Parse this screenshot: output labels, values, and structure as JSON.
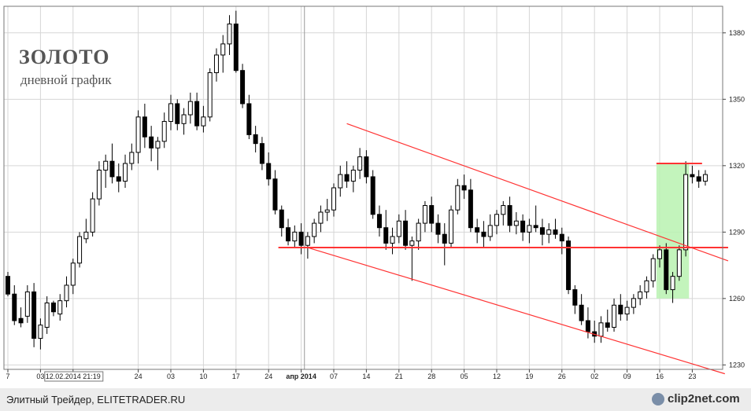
{
  "header": {
    "title": "ЗОЛОТО",
    "subtitle": "дневной график"
  },
  "footer": {
    "text": "Элитный Трейдер, ELITETRADER.RU",
    "logo_text": "clip2net.com"
  },
  "colors": {
    "candle_stroke": "#000000",
    "up_fill": "#ffffff",
    "down_fill": "#000000",
    "trend_line": "#ff3333",
    "highlight": "#b8f2b0"
  },
  "chart_data": {
    "type": "candlestick",
    "ylim": [
      1228,
      1392
    ],
    "y_ticks": [
      1230,
      1260,
      1290,
      1320,
      1350,
      1380
    ],
    "x_ticks": [
      {
        "label": "7",
        "i": 0
      },
      {
        "label": "03",
        "i": 5
      },
      {
        "label": "12.02.2014 21:19",
        "i": 10
      },
      {
        "label": "24",
        "i": 20
      },
      {
        "label": "03",
        "i": 25
      },
      {
        "label": "10",
        "i": 30
      },
      {
        "label": "17",
        "i": 35
      },
      {
        "label": "24",
        "i": 40
      },
      {
        "label": "апр 2014",
        "i": 45
      },
      {
        "label": "07",
        "i": 50
      },
      {
        "label": "14",
        "i": 55
      },
      {
        "label": "21",
        "i": 60
      },
      {
        "label": "28",
        "i": 65
      },
      {
        "label": "05",
        "i": 70
      },
      {
        "label": "12",
        "i": 75
      },
      {
        "label": "19",
        "i": 80
      },
      {
        "label": "26",
        "i": 85
      },
      {
        "label": "02",
        "i": 90
      },
      {
        "label": "09",
        "i": 95
      },
      {
        "label": "16",
        "i": 100
      },
      {
        "label": "23",
        "i": 105
      }
    ],
    "month_separator_index": 46,
    "candles": [
      [
        1270,
        1272,
        1261,
        1262
      ],
      [
        1262,
        1266,
        1248,
        1250
      ],
      [
        1251,
        1256,
        1247,
        1249
      ],
      [
        1252,
        1266,
        1249,
        1263
      ],
      [
        1263,
        1267,
        1238,
        1242
      ],
      [
        1242,
        1251,
        1237,
        1248
      ],
      [
        1247,
        1261,
        1244,
        1258
      ],
      [
        1258,
        1259,
        1252,
        1254
      ],
      [
        1253,
        1262,
        1250,
        1259
      ],
      [
        1259,
        1270,
        1256,
        1266
      ],
      [
        1266,
        1278,
        1262,
        1276
      ],
      [
        1276,
        1290,
        1274,
        1288
      ],
      [
        1287,
        1296,
        1285,
        1290
      ],
      [
        1290,
        1308,
        1288,
        1305
      ],
      [
        1305,
        1322,
        1302,
        1318
      ],
      [
        1318,
        1325,
        1310,
        1322
      ],
      [
        1322,
        1330,
        1312,
        1315
      ],
      [
        1315,
        1321,
        1308,
        1313
      ],
      [
        1313,
        1325,
        1310,
        1321
      ],
      [
        1321,
        1330,
        1318,
        1326
      ],
      [
        1326,
        1345,
        1321,
        1342
      ],
      [
        1342,
        1348,
        1328,
        1333
      ],
      [
        1333,
        1338,
        1322,
        1328
      ],
      [
        1328,
        1333,
        1318,
        1331
      ],
      [
        1331,
        1344,
        1328,
        1340
      ],
      [
        1340,
        1352,
        1336,
        1348
      ],
      [
        1348,
        1350,
        1336,
        1339
      ],
      [
        1339,
        1346,
        1334,
        1343
      ],
      [
        1343,
        1353,
        1339,
        1349
      ],
      [
        1349,
        1353,
        1336,
        1338
      ],
      [
        1338,
        1347,
        1335,
        1342
      ],
      [
        1342,
        1364,
        1340,
        1362
      ],
      [
        1362,
        1373,
        1358,
        1370
      ],
      [
        1370,
        1379,
        1362,
        1375
      ],
      [
        1375,
        1388,
        1370,
        1384
      ],
      [
        1384,
        1390,
        1362,
        1363
      ],
      [
        1363,
        1366,
        1346,
        1348
      ],
      [
        1348,
        1352,
        1332,
        1334
      ],
      [
        1334,
        1338,
        1326,
        1330
      ],
      [
        1330,
        1333,
        1318,
        1321
      ],
      [
        1321,
        1326,
        1311,
        1314
      ],
      [
        1314,
        1318,
        1298,
        1300
      ],
      [
        1300,
        1302,
        1288,
        1292
      ],
      [
        1292,
        1296,
        1284,
        1286
      ],
      [
        1286,
        1293,
        1283,
        1290
      ],
      [
        1290,
        1294,
        1280,
        1284
      ],
      [
        1284,
        1290,
        1278,
        1288
      ],
      [
        1288,
        1296,
        1285,
        1294
      ],
      [
        1294,
        1302,
        1290,
        1299
      ],
      [
        1299,
        1305,
        1295,
        1300
      ],
      [
        1300,
        1312,
        1297,
        1310
      ],
      [
        1310,
        1320,
        1306,
        1316
      ],
      [
        1316,
        1322,
        1310,
        1313
      ],
      [
        1313,
        1320,
        1308,
        1318
      ],
      [
        1318,
        1328,
        1314,
        1324
      ],
      [
        1324,
        1327,
        1312,
        1315
      ],
      [
        1315,
        1318,
        1296,
        1298
      ],
      [
        1298,
        1302,
        1288,
        1292
      ],
      [
        1292,
        1300,
        1282,
        1285
      ],
      [
        1285,
        1292,
        1280,
        1288
      ],
      [
        1288,
        1298,
        1285,
        1295
      ],
      [
        1295,
        1300,
        1282,
        1284
      ],
      [
        1284,
        1288,
        1268,
        1286
      ],
      [
        1286,
        1296,
        1282,
        1294
      ],
      [
        1294,
        1304,
        1290,
        1302
      ],
      [
        1302,
        1306,
        1290,
        1294
      ],
      [
        1294,
        1298,
        1285,
        1289
      ],
      [
        1289,
        1294,
        1275,
        1285
      ],
      [
        1285,
        1302,
        1283,
        1300
      ],
      [
        1300,
        1314,
        1298,
        1311
      ],
      [
        1311,
        1316,
        1305,
        1309
      ],
      [
        1309,
        1314,
        1290,
        1292
      ],
      [
        1292,
        1296,
        1285,
        1290
      ],
      [
        1290,
        1295,
        1283,
        1288
      ],
      [
        1288,
        1298,
        1286,
        1293
      ],
      [
        1293,
        1300,
        1289,
        1298
      ],
      [
        1298,
        1304,
        1293,
        1302
      ],
      [
        1302,
        1306,
        1290,
        1293
      ],
      [
        1293,
        1299,
        1289,
        1295
      ],
      [
        1295,
        1298,
        1286,
        1290
      ],
      [
        1290,
        1296,
        1285,
        1293
      ],
      [
        1293,
        1302,
        1290,
        1292
      ],
      [
        1292,
        1296,
        1284,
        1289
      ],
      [
        1289,
        1294,
        1285,
        1291
      ],
      [
        1291,
        1296,
        1287,
        1289
      ],
      [
        1289,
        1292,
        1280,
        1286
      ],
      [
        1286,
        1288,
        1262,
        1264
      ],
      [
        1264,
        1266,
        1253,
        1257
      ],
      [
        1257,
        1262,
        1248,
        1250
      ],
      [
        1250,
        1256,
        1242,
        1245
      ],
      [
        1245,
        1250,
        1240,
        1243
      ],
      [
        1243,
        1252,
        1240,
        1249
      ],
      [
        1249,
        1255,
        1245,
        1247
      ],
      [
        1247,
        1260,
        1245,
        1257
      ],
      [
        1257,
        1262,
        1250,
        1253
      ],
      [
        1253,
        1259,
        1250,
        1256
      ],
      [
        1256,
        1262,
        1253,
        1260
      ],
      [
        1260,
        1266,
        1257,
        1263
      ],
      [
        1263,
        1270,
        1260,
        1268
      ],
      [
        1268,
        1280,
        1265,
        1278
      ],
      [
        1278,
        1284,
        1274,
        1282
      ],
      [
        1282,
        1285,
        1262,
        1264
      ],
      [
        1264,
        1272,
        1258,
        1270
      ],
      [
        1270,
        1284,
        1268,
        1282
      ],
      [
        1282,
        1322,
        1279,
        1316
      ],
      [
        1316,
        1320,
        1312,
        1315
      ],
      [
        1315,
        1318,
        1310,
        1313
      ],
      [
        1313,
        1318,
        1311,
        1316
      ]
    ],
    "annotations": {
      "support_line": {
        "y": 1283,
        "x_from": 41.5,
        "x_to": 110.5
      },
      "resistance_line": {
        "y": 1321,
        "x_from": 99.5,
        "x_to": 106.5
      },
      "channel_upper": {
        "x1": 52,
        "y1": 1339,
        "x2": 110.5,
        "y2": 1277
      },
      "channel_lower": {
        "x1": 46,
        "y1": 1283,
        "x2": 110,
        "y2": 1226
      },
      "highlight_box": {
        "x_from": 99.5,
        "x_to": 104.5,
        "y_from": 1260,
        "y_to": 1321
      }
    }
  }
}
